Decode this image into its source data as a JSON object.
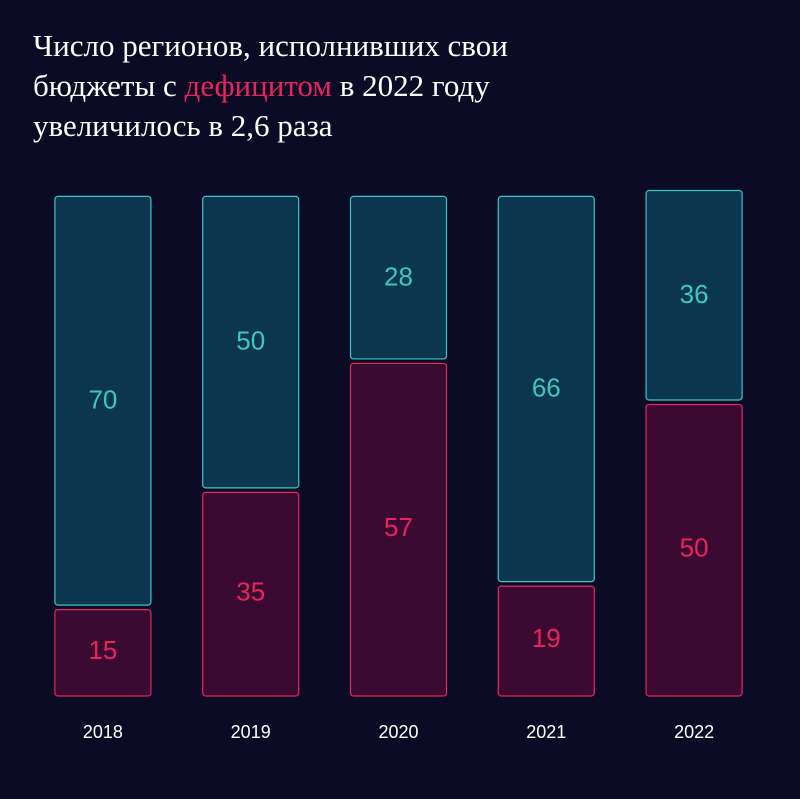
{
  "chart_data": {
    "type": "stacked-bar",
    "title": [
      [
        "Число регионов, исполнивших свои"
      ],
      [
        "бюджеты с ",
        "дефицитом",
        " в 2022 году"
      ],
      [
        "увеличилось в 2,6 раза"
      ]
    ],
    "title_highlight_color": "#e8255a",
    "categories": [
      "2018",
      "2019",
      "2020",
      "2021",
      "2022"
    ],
    "series": [
      {
        "color": "#e8255a",
        "fill": "#3a0a33",
        "values": [
          15,
          35,
          57,
          19,
          50
        ]
      },
      {
        "color": "#3cc8c0",
        "fill": "#0c3550",
        "values": [
          70,
          50,
          28,
          66,
          36
        ]
      }
    ]
  }
}
